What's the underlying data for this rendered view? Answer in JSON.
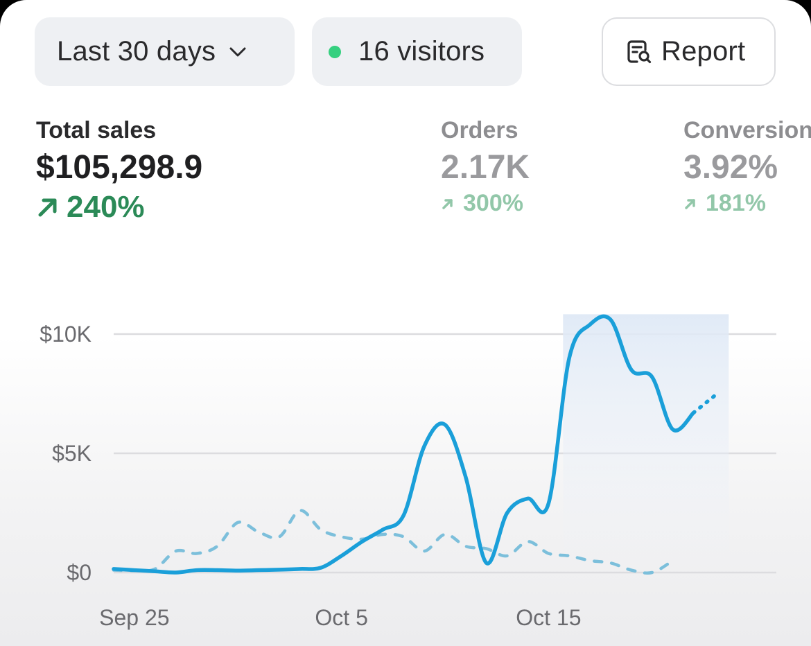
{
  "header": {
    "range_label": "Last 30 days",
    "visitors_label": "16 visitors",
    "report_label": "Report",
    "icons": {
      "range": "chevron-down-icon",
      "visitors": "live-dot-icon",
      "report": "report-search-icon"
    },
    "colors": {
      "live_dot": "#35d07f"
    }
  },
  "metrics": [
    {
      "label": "Total sales",
      "value": "$105,298.9",
      "delta": "240%",
      "direction": "up",
      "active": true
    },
    {
      "label": "Orders",
      "value": "2.17K",
      "delta": "300%",
      "direction": "up",
      "active": false
    },
    {
      "label": "Conversion",
      "value": "3.92%",
      "delta": "181%",
      "direction": "up",
      "active": false
    }
  ],
  "chart_data": {
    "type": "line",
    "x_ticks": [
      "Sep 25",
      "Oct 5",
      "Oct 15"
    ],
    "y_ticks": [
      "$0",
      "$5K",
      "$10K"
    ],
    "ylim": [
      0,
      10000
    ],
    "grid": true,
    "x": [
      "Sep 24",
      "Sep 25",
      "Sep 26",
      "Sep 27",
      "Sep 28",
      "Sep 29",
      "Sep 30",
      "Oct 1",
      "Oct 2",
      "Oct 3",
      "Oct 4",
      "Oct 5",
      "Oct 6",
      "Oct 7",
      "Oct 8",
      "Oct 9",
      "Oct 10",
      "Oct 11",
      "Oct 12",
      "Oct 13",
      "Oct 14",
      "Oct 15",
      "Oct 16",
      "Oct 17",
      "Oct 18",
      "Oct 19",
      "Oct 20",
      "Oct 21",
      "Oct 22",
      "Oct 23",
      "Oct 24",
      "Oct 25",
      "Oct 26"
    ],
    "series": [
      {
        "style": "solid",
        "color": "#1a9fd9",
        "values": [
          150,
          100,
          50,
          0,
          100,
          100,
          80,
          100,
          120,
          150,
          200,
          700,
          1300,
          1800,
          2400,
          5300,
          6200,
          4000,
          400,
          2500,
          3100,
          2900,
          9000,
          10400,
          10600,
          8500,
          8200,
          6000,
          6700,
          null,
          null,
          null,
          null
        ],
        "projected_values": [
          null,
          null,
          null,
          null,
          null,
          null,
          null,
          null,
          null,
          null,
          null,
          null,
          null,
          null,
          null,
          null,
          null,
          null,
          null,
          null,
          null,
          null,
          null,
          null,
          null,
          null,
          null,
          null,
          6700,
          7400,
          null,
          null,
          null
        ]
      },
      {
        "style": "dashed",
        "color": "#7cbfdb",
        "values": [
          100,
          80,
          150,
          900,
          800,
          1100,
          2100,
          1700,
          1500,
          2600,
          1800,
          1500,
          1400,
          1600,
          1500,
          900,
          1600,
          1100,
          1000,
          700,
          1300,
          800,
          700,
          500,
          400,
          100,
          0,
          500,
          null,
          null,
          null,
          null,
          null
        ]
      }
    ]
  }
}
